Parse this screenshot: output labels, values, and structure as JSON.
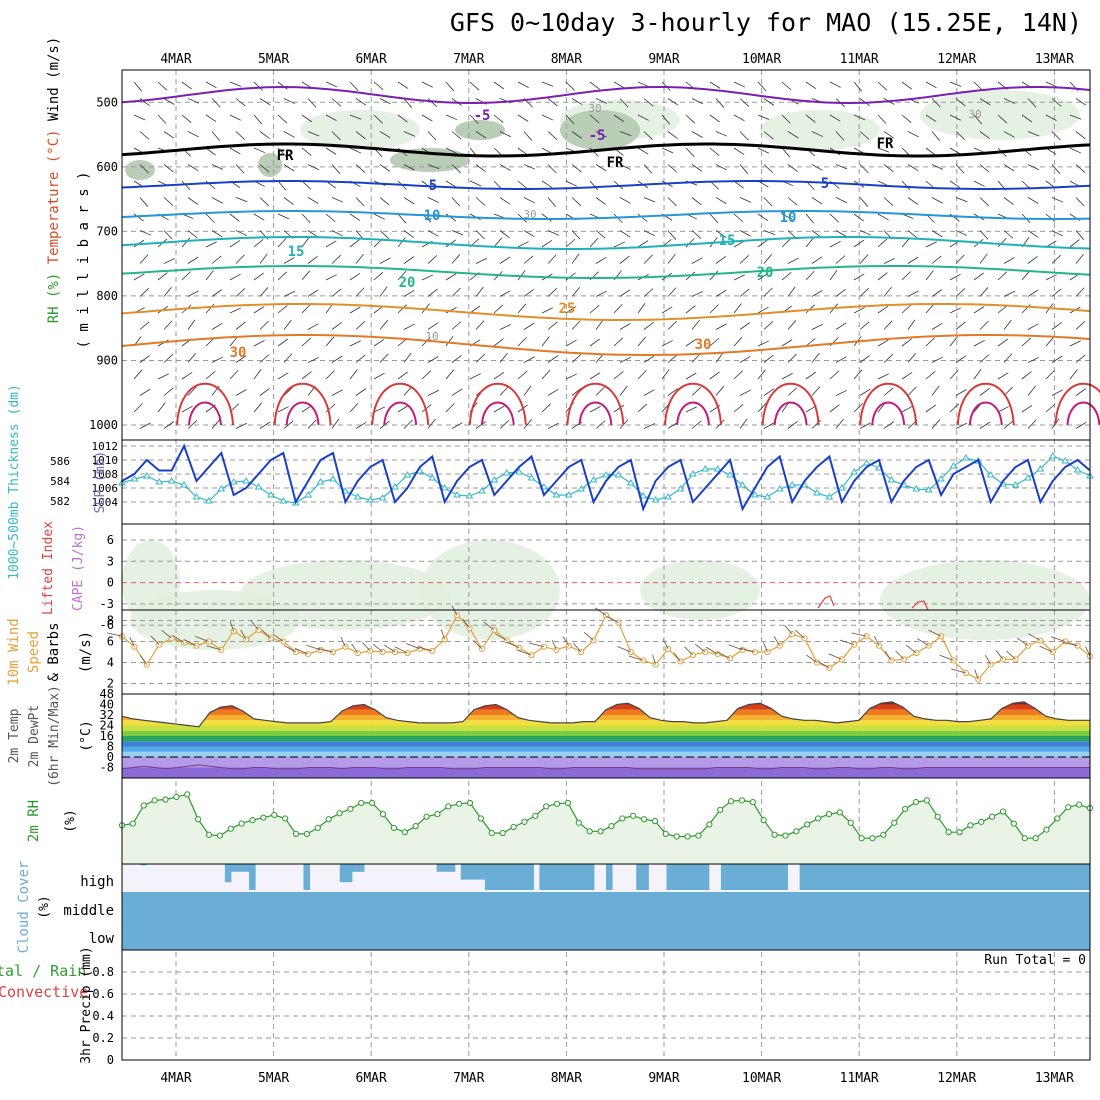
{
  "title": "GFS 0~10day 3-hourly for MAO (15.25E, 14N)",
  "dates": [
    "4MAR",
    "5MAR",
    "6MAR",
    "7MAR",
    "8MAR",
    "9MAR",
    "10MAR",
    "11MAR",
    "12MAR",
    "13MAR"
  ],
  "run_total": "Run Total = 0",
  "colors": {
    "grid": "#9a9a9a",
    "blue": "#1a3fc7",
    "cyan": "#35b8c8",
    "orange": "#e6a03a",
    "green": "#2e9a2e",
    "cloud": "#6aaed6",
    "cloud_bg": "#f4f2fa",
    "rh_fill": "#e9f4e7",
    "purple": "#7a1fb0"
  },
  "chart_data": [
    {
      "type": "contour",
      "panel": "upper-air",
      "ylabel_parts": [
        "Wind (m/s)",
        "Temperature (°C)",
        "RH (%)"
      ],
      "ylabel2": "( m i l l i b a r s )",
      "ylim": [
        450,
        1000
      ],
      "yticks": [
        500,
        600,
        700,
        800,
        900,
        1000
      ],
      "temperature_labels": [
        "-5",
        "-5",
        "FR",
        "FR",
        "FR",
        "5",
        "5",
        "10",
        "10",
        "15",
        "15",
        "20",
        "20",
        "25",
        "30",
        "30"
      ],
      "rh_labels": [
        "30",
        "30",
        "10",
        "30"
      ]
    },
    {
      "type": "line",
      "panel": "thickness-slp",
      "ylabel_left": "1000~500mb Thickness (dm)",
      "ylabel_right": "SLP (mb)",
      "yticks_left": [
        582,
        584,
        586
      ],
      "yticks_right": [
        1004,
        1006,
        1008,
        1010,
        1012
      ],
      "series": [
        {
          "name": "SLP (mb)",
          "values": [
            1007,
            1008,
            1010,
            1008.5,
            1008.5,
            1012,
            1007,
            1009,
            1011,
            1005,
            1006,
            1008,
            1010,
            1011,
            1004,
            1007,
            1010,
            1011,
            1004,
            1007,
            1009,
            1010,
            1004,
            1006,
            1009,
            1010.5,
            1004,
            1007,
            1009,
            1010,
            1005,
            1007,
            1009,
            1010.5,
            1005,
            1007,
            1009,
            1010,
            1004,
            1007,
            1009,
            1010,
            1003,
            1007,
            1009,
            1010,
            1004,
            1006,
            1008,
            1010,
            1003,
            1006,
            1009,
            1010.5,
            1004,
            1007,
            1009,
            1010.5,
            1004,
            1007,
            1009,
            1010,
            1004,
            1007,
            1009,
            1010,
            1005,
            1008,
            1009,
            1010,
            1004,
            1007,
            1009,
            1010,
            1004,
            1007,
            1009,
            1010,
            1008.5
          ]
        },
        {
          "name": "Thickness (dm)",
          "values": [
            583.8,
            584.2,
            584.5,
            583.9,
            584.0,
            583.6,
            582.4,
            582.0,
            583.2,
            583.9,
            584.0,
            583.4,
            582.6,
            582.0,
            581.8,
            582.6,
            583.9,
            584.2,
            583.0,
            582.4,
            582.1,
            582.3,
            583.4,
            584.6,
            585.0,
            584.3,
            583.3,
            582.6,
            582.5,
            583.0,
            584.1,
            584.8,
            584.9,
            584.3,
            583.4,
            582.6,
            582.6,
            583.2,
            584.1,
            584.6,
            584.6,
            583.8,
            582.5,
            582.1,
            582.4,
            583.2,
            584.7,
            585.2,
            585.2,
            584.6,
            583.6,
            582.6,
            582.4,
            583.2,
            583.6,
            583.6,
            582.8,
            582.4,
            583.3,
            584.9,
            585.8,
            585.3,
            584.1,
            583.6,
            583.2,
            583.1,
            584.2,
            585.5,
            586.3,
            586.0,
            584.6,
            583.7,
            583.6,
            584.3,
            585.2,
            586.5,
            586.0,
            585.1,
            584.5
          ]
        }
      ]
    },
    {
      "type": "line",
      "panel": "stability",
      "ylabel_left": "Lifted Index",
      "ylabel_right": "CAPE (J/kg)",
      "yticks": [
        "6",
        "3",
        "0",
        "-3",
        "-6"
      ],
      "series": [
        {
          "name": "Lifted Index",
          "values": [
            0,
            0,
            0,
            0,
            0,
            0,
            0,
            0,
            0,
            0
          ]
        }
      ]
    },
    {
      "type": "line",
      "panel": "wind10m",
      "ylabel": "10m Wind Speed & Barbs (m/s)",
      "ylim": [
        1,
        9
      ],
      "yticks": [
        2,
        4,
        6,
        8
      ],
      "series": [
        {
          "name": "Speed",
          "values": [
            6.5,
            5.5,
            3.8,
            5.7,
            6.3,
            5.9,
            5.6,
            6.0,
            5.2,
            7.0,
            6.2,
            7.1,
            6.3,
            6.0,
            5.0,
            4.8,
            5.2,
            5.0,
            5.5,
            4.9,
            5.1,
            5.0,
            5.0,
            4.9,
            5.3,
            5.1,
            6.2,
            8.5,
            7.3,
            5.3,
            7.1,
            6.1,
            5.4,
            4.7,
            5.5,
            5.2,
            5.6,
            5.0,
            6.1,
            8.5,
            7.8,
            5.0,
            4.2,
            3.8,
            5.3,
            4.1,
            4.7,
            5.0,
            4.8,
            4.4,
            5.2,
            5.0,
            5.0,
            5.6,
            6.7,
            6.3,
            4.0,
            3.5,
            4.3,
            5.7,
            6.5,
            5.6,
            4.2,
            4.3,
            4.9,
            5.6,
            6.5,
            4.2,
            3.0,
            2.4,
            3.8,
            4.3,
            4.3,
            5.6,
            6.1,
            5.0,
            6.0,
            5.6,
            4.6
          ]
        }
      ]
    },
    {
      "type": "area",
      "panel": "temperature",
      "ylabel": "2m Temp 2m DewPt (6hr Min/Max) (°C)",
      "ylim": [
        -16,
        48
      ],
      "yticks": [
        -8,
        0,
        8,
        16,
        24,
        32,
        40,
        48
      ],
      "series": [
        {
          "name": "2m Temp",
          "values": [
            31,
            29,
            28,
            27,
            26,
            25,
            24,
            23,
            34,
            38,
            39,
            35,
            29,
            28,
            27,
            26,
            26,
            26,
            26,
            27,
            35,
            39,
            40,
            36,
            30,
            28,
            27,
            26,
            26,
            26,
            26,
            27,
            36,
            39,
            40,
            36,
            30,
            28,
            27,
            26,
            26,
            26,
            27,
            27,
            36,
            40,
            41,
            37,
            30,
            28,
            27,
            27,
            26,
            26,
            27,
            28,
            37,
            40,
            41,
            37,
            31,
            29,
            28,
            28,
            27,
            26,
            27,
            28,
            37,
            41,
            42,
            38,
            31,
            29,
            28,
            28,
            27,
            27,
            28,
            29,
            37,
            41,
            42,
            37,
            31,
            29,
            28,
            28,
            28
          ]
        },
        {
          "name": "2m DewPt",
          "values": [
            -9,
            -8,
            -7,
            -8,
            -9,
            -8,
            -7,
            -6,
            -7,
            -8,
            -9,
            -9,
            -8,
            -8,
            -9,
            -9,
            -9,
            -8,
            -8,
            -8,
            -9,
            -8,
            -8,
            -8,
            -9,
            -9,
            -8,
            -8,
            -8,
            -8,
            -9,
            -9,
            -9,
            -8,
            -8,
            -8,
            -8,
            -8,
            -8,
            -9,
            -9,
            -8,
            -8,
            -8,
            -8,
            -8,
            -8,
            -9,
            -9,
            -9,
            -9,
            -9,
            -9,
            -9,
            -8,
            -8,
            -8,
            -8,
            -9,
            -9,
            -8,
            -8,
            -8,
            -9,
            -9,
            -8,
            -8,
            -9,
            -9,
            -8,
            -8,
            -9,
            -9,
            -8,
            -8,
            -8,
            -8,
            -8,
            -8,
            -8,
            -8,
            -8,
            -8,
            -8,
            -8,
            -8,
            -8,
            -8,
            -8
          ]
        }
      ]
    },
    {
      "type": "line",
      "panel": "rh2m",
      "ylabel": "2m RH (%)",
      "ylim": [
        0,
        100
      ],
      "series": [
        {
          "name": "2m RH",
          "values": [
            45,
            47,
            68,
            74,
            75,
            78,
            81,
            52,
            34,
            33,
            41,
            47,
            51,
            54,
            57,
            53,
            35,
            35,
            42,
            52,
            59,
            64,
            71,
            71,
            58,
            42,
            37,
            44,
            55,
            58,
            67,
            70,
            71,
            53,
            36,
            36,
            43,
            49,
            56,
            67,
            70,
            71,
            48,
            38,
            38,
            44,
            53,
            56,
            52,
            50,
            35,
            32,
            32,
            33,
            46,
            63,
            73,
            74,
            72,
            51,
            34,
            33,
            38,
            46,
            53,
            58,
            60,
            48,
            30,
            30,
            34,
            48,
            64,
            72,
            74,
            55,
            37,
            37,
            45,
            49,
            55,
            61,
            47,
            30,
            30,
            40,
            53,
            66,
            69,
            65
          ]
        }
      ]
    },
    {
      "type": "bar",
      "panel": "cloud-cover",
      "ylabel": "Cloud Cover (%)",
      "levels": [
        "high",
        "middle",
        "low"
      ],
      "series": [
        {
          "name": "high",
          "values": [
            0,
            0,
            0,
            5,
            0,
            0,
            0,
            0,
            0,
            0,
            0,
            0,
            0,
            0,
            0,
            0,
            0,
            70,
            30,
            30,
            30,
            100,
            0,
            0,
            0,
            0,
            0,
            0,
            0,
            0,
            100,
            0,
            0,
            0,
            0,
            0,
            70,
            70,
            30,
            30,
            0,
            0,
            0,
            0,
            0,
            0,
            0,
            0,
            0,
            0,
            0,
            0,
            30,
            30,
            30,
            0,
            60,
            60,
            60,
            60,
            100,
            100,
            100,
            100,
            100,
            100,
            100,
            100,
            0,
            100,
            100,
            100,
            100,
            100,
            100,
            100,
            100,
            100,
            0,
            0,
            100,
            0,
            0,
            0,
            0,
            100,
            100,
            0,
            0,
            0,
            100,
            100,
            100,
            100,
            100,
            100,
            100,
            0,
            0,
            100,
            100,
            100,
            100,
            100,
            100,
            100,
            100,
            100,
            100,
            100,
            0,
            0,
            100,
            100,
            100,
            100,
            100,
            100,
            100,
            100,
            100,
            100,
            100,
            100,
            100,
            100,
            100,
            100,
            100,
            100,
            100,
            100,
            100,
            100,
            100,
            100,
            100,
            100,
            100,
            100,
            100,
            100,
            100,
            100,
            100,
            100,
            100,
            100,
            100,
            100,
            100,
            100,
            100,
            100,
            100,
            100,
            100,
            100,
            100,
            100
          ]
        }
      ]
    },
    {
      "type": "bar",
      "panel": "precip",
      "ylabel_left": "Total / Rain Convective",
      "ylabel": "3hr Precip (mm)",
      "ylim": [
        0,
        1
      ],
      "yticks": [
        "0",
        "0.2",
        "0.4",
        "0.6",
        "0.8"
      ],
      "series": [
        {
          "name": "Total",
          "values": []
        }
      ]
    }
  ]
}
